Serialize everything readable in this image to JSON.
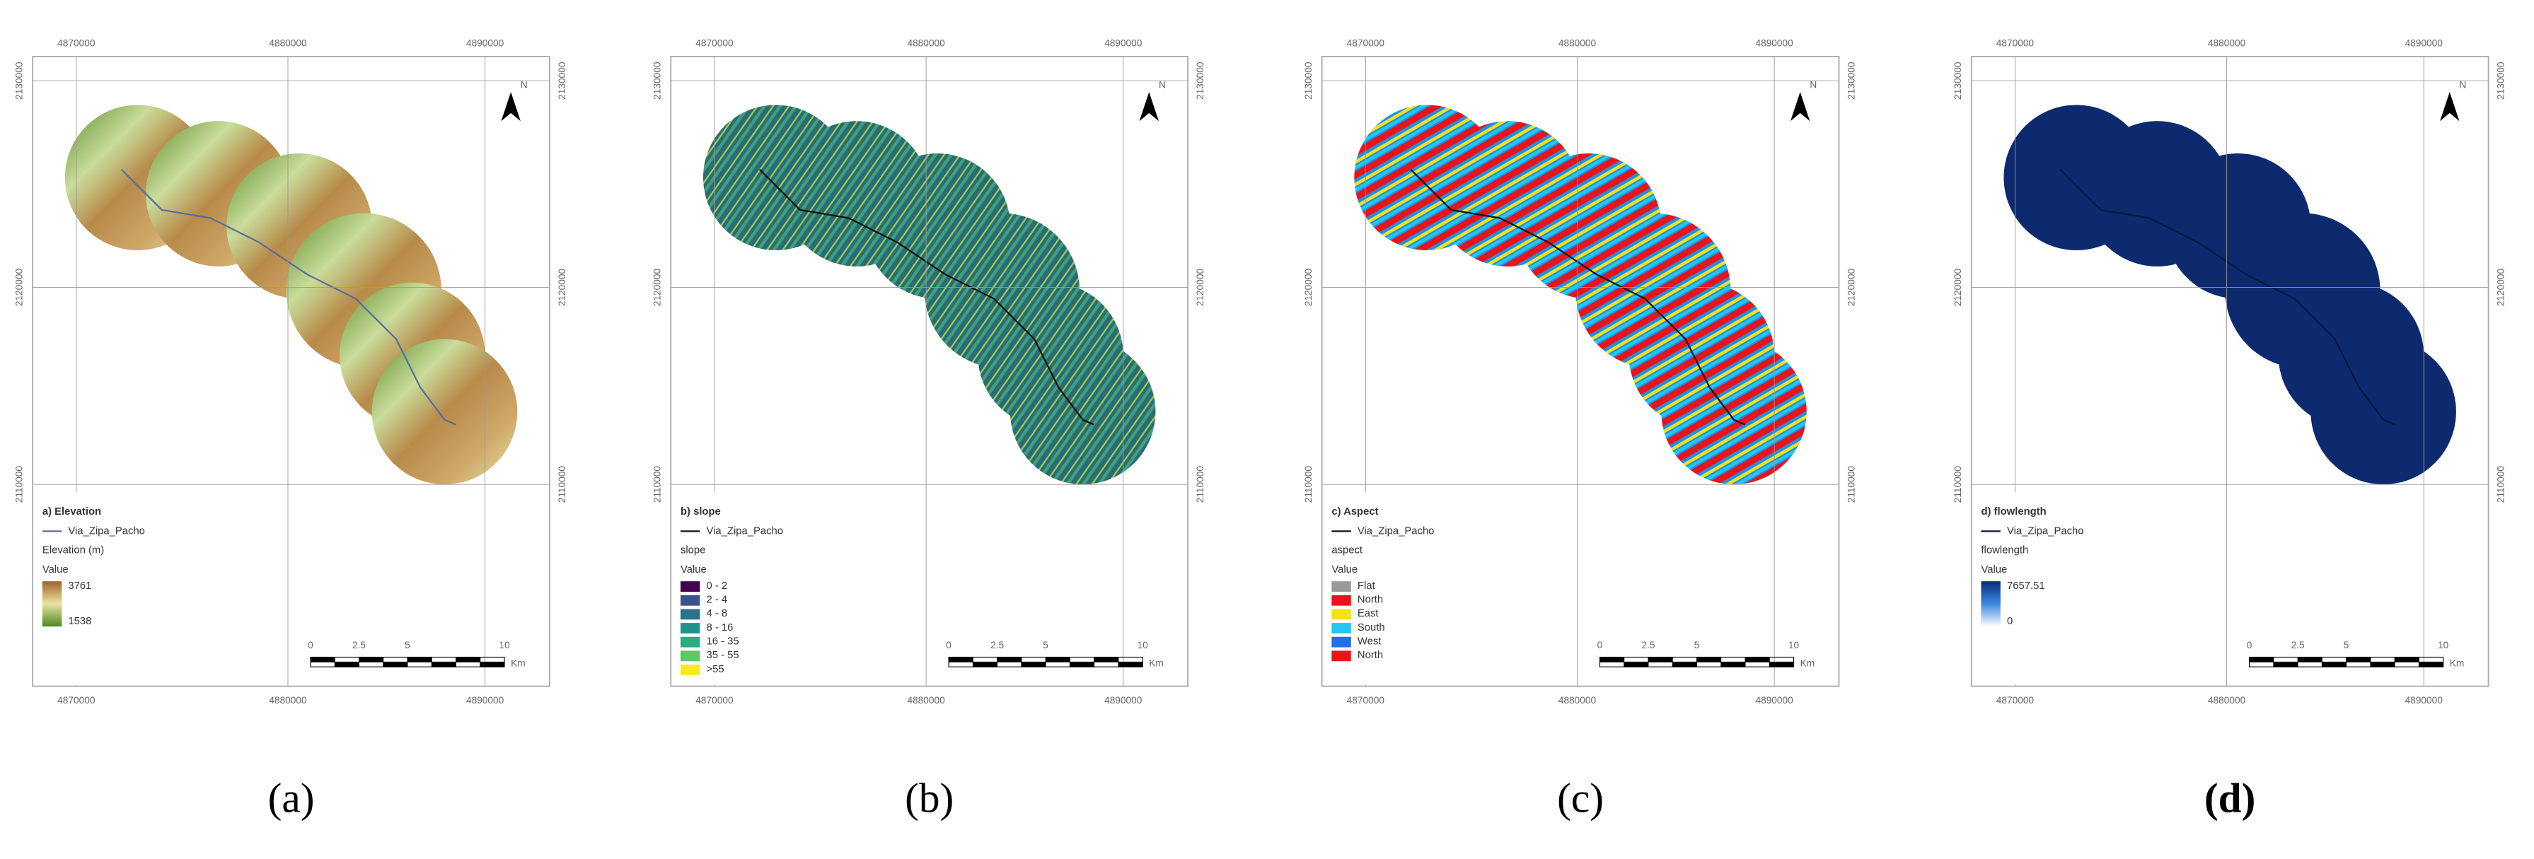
{
  "panels": [
    {
      "top_labels": [
        "4870000",
        "4880000",
        "4890000"
      ],
      "bottom_labels": [
        "4870000",
        "4880000",
        "4890000"
      ],
      "left_labels": [
        "2130000",
        "2120000",
        "2110000"
      ],
      "right_labels": [
        "2130000",
        "2120000",
        "2110000"
      ],
      "north": "N",
      "legend": {
        "title": "a) Elevation",
        "route": "Via_Zipa_Pacho",
        "layer": "Elevation (m)",
        "value_heading": "Value",
        "items": [
          "3761",
          "1538"
        ]
      },
      "scale_labels": [
        "0",
        "2.5",
        "5",
        "10"
      ],
      "scale_unit": "Km",
      "caption": "(a)"
    },
    {
      "top_labels": [
        "4870000",
        "4880000",
        "4890000"
      ],
      "bottom_labels": [
        "4870000",
        "4880000",
        "4890000"
      ],
      "left_labels": [
        "2130000",
        "2120000",
        "2110000"
      ],
      "right_labels": [
        "2130000",
        "2120000",
        "2110000"
      ],
      "north": "N",
      "legend": {
        "title": "b) slope",
        "route": "Via_Zipa_Pacho",
        "layer": "slope",
        "value_heading": "Value",
        "items": [
          "0 - 2",
          "2 - 4",
          "4 - 8",
          "8 - 16",
          "16 - 35",
          "35 - 55",
          ">55"
        ]
      },
      "scale_labels": [
        "0",
        "2.5",
        "5",
        "10"
      ],
      "scale_unit": "Km",
      "caption": "(b)"
    },
    {
      "top_labels": [
        "4870000",
        "4880000",
        "4890000"
      ],
      "bottom_labels": [
        "4870000",
        "4880000",
        "4890000"
      ],
      "left_labels": [
        "2130000",
        "2120000",
        "2110000"
      ],
      "right_labels": [
        "2130000",
        "2120000",
        "2110000"
      ],
      "north": "N",
      "legend": {
        "title": "c) Aspect",
        "route": "Via_Zipa_Pacho",
        "layer": "aspect",
        "value_heading": "Value",
        "items": [
          "Flat",
          "North",
          "East",
          "South",
          "West",
          "North"
        ]
      },
      "scale_labels": [
        "0",
        "2.5",
        "5",
        "10"
      ],
      "scale_unit": "Km",
      "caption": "(c)"
    },
    {
      "top_labels": [
        "4870000",
        "4880000",
        "4890000"
      ],
      "bottom_labels": [
        "4870000",
        "4880000",
        "4890000"
      ],
      "left_labels": [
        "2130000",
        "2120000",
        "2110000"
      ],
      "right_labels": [
        "2130000",
        "2120000",
        "2110000"
      ],
      "north": "N",
      "legend": {
        "title": "d) flowlength",
        "route": "Via_Zipa_Pacho",
        "layer": "flowlength",
        "value_heading": "Value",
        "items": [
          "7657.51",
          "0"
        ]
      },
      "scale_labels": [
        "0",
        "2.5",
        "5",
        "10"
      ],
      "scale_unit": "Km",
      "caption": "(d)"
    }
  ]
}
